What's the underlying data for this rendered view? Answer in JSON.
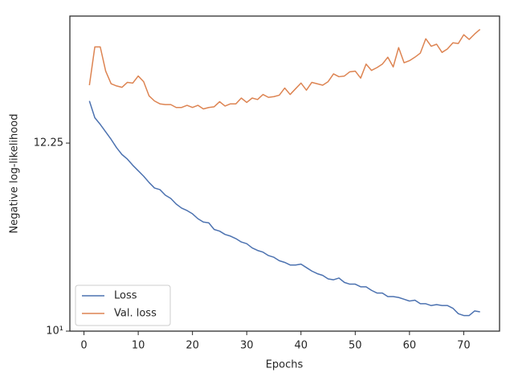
{
  "chart_data": {
    "type": "line",
    "xlabel": "Epochs",
    "ylabel": "Negative log-likelihood",
    "x": [
      1,
      2,
      3,
      4,
      5,
      6,
      7,
      8,
      9,
      10,
      11,
      12,
      13,
      14,
      15,
      16,
      17,
      18,
      19,
      20,
      21,
      22,
      23,
      24,
      25,
      26,
      27,
      28,
      29,
      30,
      31,
      32,
      33,
      34,
      35,
      36,
      37,
      38,
      39,
      40,
      41,
      42,
      43,
      44,
      45,
      46,
      47,
      48,
      49,
      50,
      51,
      52,
      53,
      54,
      55,
      56,
      57,
      58,
      59,
      60,
      61,
      62,
      63,
      64,
      65,
      66,
      67,
      68,
      69,
      70,
      71,
      72,
      73
    ],
    "series": [
      {
        "name": "Loss",
        "color": "#4c72b0",
        "values": [
          12.82,
          12.59,
          12.5,
          12.4,
          12.3,
          12.19,
          12.1,
          12.04,
          11.96,
          11.89,
          11.82,
          11.74,
          11.67,
          11.65,
          11.58,
          11.54,
          11.47,
          11.42,
          11.39,
          11.35,
          11.29,
          11.25,
          11.24,
          11.16,
          11.14,
          11.1,
          11.08,
          11.05,
          11.01,
          10.99,
          10.94,
          10.91,
          10.89,
          10.85,
          10.83,
          10.79,
          10.77,
          10.74,
          10.74,
          10.75,
          10.71,
          10.67,
          10.64,
          10.62,
          10.58,
          10.57,
          10.59,
          10.54,
          10.52,
          10.52,
          10.49,
          10.49,
          10.45,
          10.42,
          10.42,
          10.38,
          10.38,
          10.37,
          10.35,
          10.33,
          10.34,
          10.3,
          10.3,
          10.28,
          10.29,
          10.28,
          10.28,
          10.25,
          10.19,
          10.17,
          10.17,
          10.22,
          10.21
        ]
      },
      {
        "name": "Val. loss",
        "color": "#dd8452",
        "values": [
          13.04,
          13.59,
          13.59,
          13.24,
          13.06,
          13.03,
          13.01,
          13.08,
          13.07,
          13.17,
          13.09,
          12.89,
          12.82,
          12.78,
          12.77,
          12.77,
          12.73,
          12.73,
          12.76,
          12.73,
          12.76,
          12.71,
          12.73,
          12.74,
          12.81,
          12.75,
          12.78,
          12.78,
          12.86,
          12.8,
          12.86,
          12.84,
          12.91,
          12.87,
          12.88,
          12.9,
          13.0,
          12.91,
          12.99,
          13.07,
          12.97,
          13.08,
          13.06,
          13.04,
          13.09,
          13.2,
          13.16,
          13.17,
          13.23,
          13.24,
          13.14,
          13.34,
          13.25,
          13.29,
          13.34,
          13.44,
          13.3,
          13.58,
          13.36,
          13.39,
          13.44,
          13.5,
          13.71,
          13.6,
          13.63,
          13.51,
          13.56,
          13.65,
          13.64,
          13.77,
          13.7,
          13.78,
          13.85
        ]
      }
    ],
    "xlim": [
      -2.6,
      76.6
    ],
    "xticks": [
      0,
      10,
      20,
      30,
      40,
      50,
      60,
      70
    ],
    "ylim": [
      10,
      14.05
    ],
    "yticks": [
      {
        "value": 10,
        "label": "10¹"
      },
      12.25
    ],
    "log_y": true,
    "legend": "lower left"
  }
}
